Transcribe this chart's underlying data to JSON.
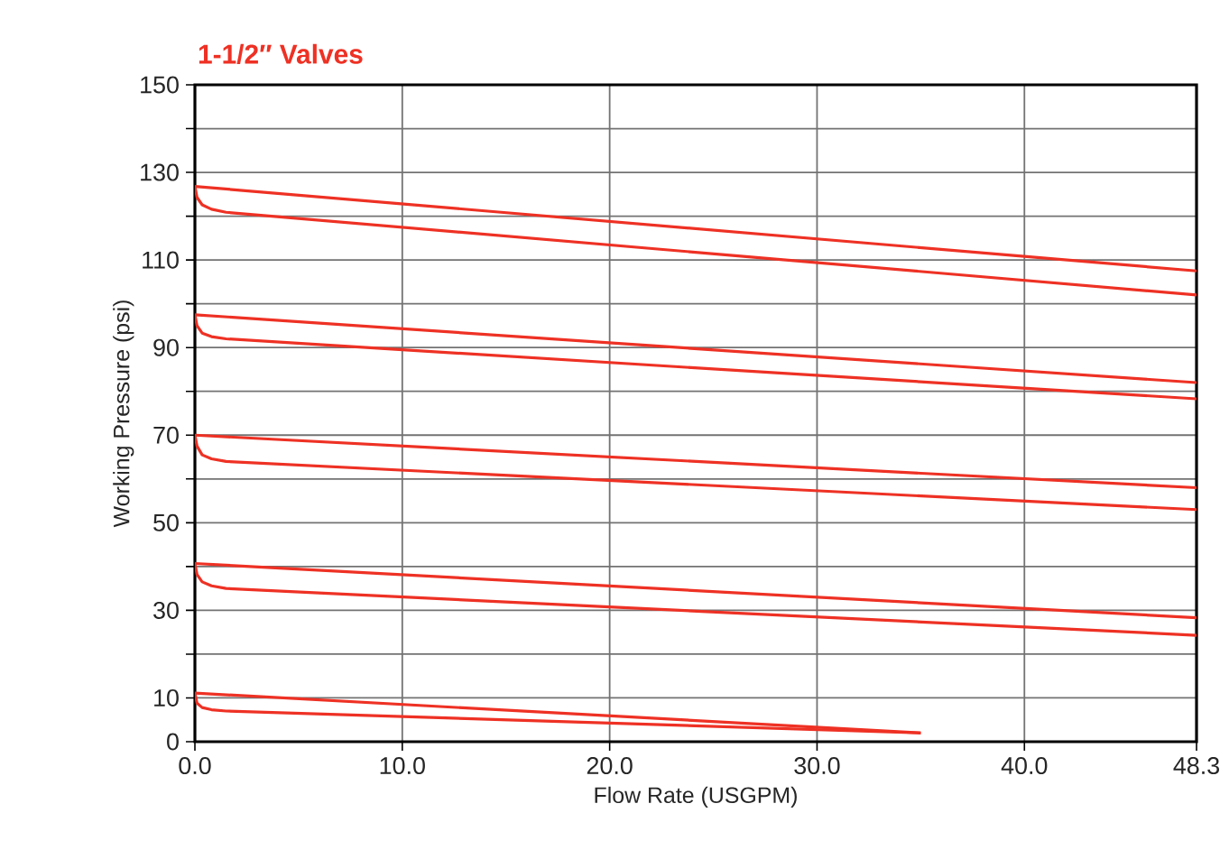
{
  "chart_data": {
    "type": "line",
    "title": "**1-1/2″ Valves**",
    "xlabel": "Flow Rate (USGPM)",
    "ylabel": "Working Pressure (psi)",
    "xlim": [
      0,
      48.3
    ],
    "ylim": [
      0,
      150
    ],
    "xticks": [
      {
        "value": 0,
        "label": "0.0"
      },
      {
        "value": 10,
        "label": "10.0"
      },
      {
        "value": 20,
        "label": "20.0"
      },
      {
        "value": 30,
        "label": "30.0"
      },
      {
        "value": 40,
        "label": "40.0"
      },
      48.3
    ],
    "yticks": [
      0,
      10,
      {
        "value": 20,
        "label": null
      },
      30,
      {
        "value": 40,
        "label": null
      },
      50,
      {
        "value": 60,
        "label": null
      },
      70,
      {
        "value": 80,
        "label": null
      },
      90,
      {
        "value": 100,
        "label": null
      },
      110,
      {
        "value": 120,
        "label": null
      },
      130,
      {
        "value": 140,
        "label": null
      },
      150
    ],
    "grid": true,
    "line_style": "solid",
    "marker": "none",
    "series": [
      {
        "color": "#ee3124",
        "x": [
          0,
          48.3
        ],
        "values": [
          126.8,
          107.5
        ]
      },
      {
        "color": "#ee3124",
        "x": [
          0,
          0.1,
          0.35,
          0.8,
          1.5,
          48.3
        ],
        "values": [
          126.8,
          124.3,
          122.6,
          121.6,
          120.9,
          102
        ]
      },
      {
        "color": "#ee3124",
        "x": [
          0,
          48.3
        ],
        "values": [
          97.5,
          82
        ]
      },
      {
        "color": "#ee3124",
        "x": [
          0,
          0.1,
          0.35,
          0.8,
          1.5,
          48.3
        ],
        "values": [
          97.5,
          95,
          93.3,
          92.5,
          92,
          78.3
        ]
      },
      {
        "color": "#ee3124",
        "x": [
          0,
          48.3
        ],
        "values": [
          70,
          58
        ]
      },
      {
        "color": "#ee3124",
        "x": [
          0,
          0.1,
          0.35,
          0.8,
          1.5,
          48.3
        ],
        "values": [
          70,
          67.5,
          65.5,
          64.6,
          64,
          53
        ]
      },
      {
        "color": "#ee3124",
        "x": [
          0,
          48.3
        ],
        "values": [
          40.7,
          28.3
        ]
      },
      {
        "color": "#ee3124",
        "x": [
          0,
          0.1,
          0.35,
          0.8,
          1.5,
          48.3
        ],
        "values": [
          40.7,
          38.2,
          36.5,
          35.6,
          35,
          24.3
        ]
      },
      {
        "color": "#ee3124",
        "x": [
          0,
          35
        ],
        "values": [
          11.1,
          2
        ]
      },
      {
        "color": "#ee3124",
        "x": [
          0,
          0.1,
          0.35,
          0.8,
          1.5,
          35
        ],
        "values": [
          11.1,
          8.8,
          7.8,
          7.3,
          7,
          2
        ]
      }
    ]
  }
}
